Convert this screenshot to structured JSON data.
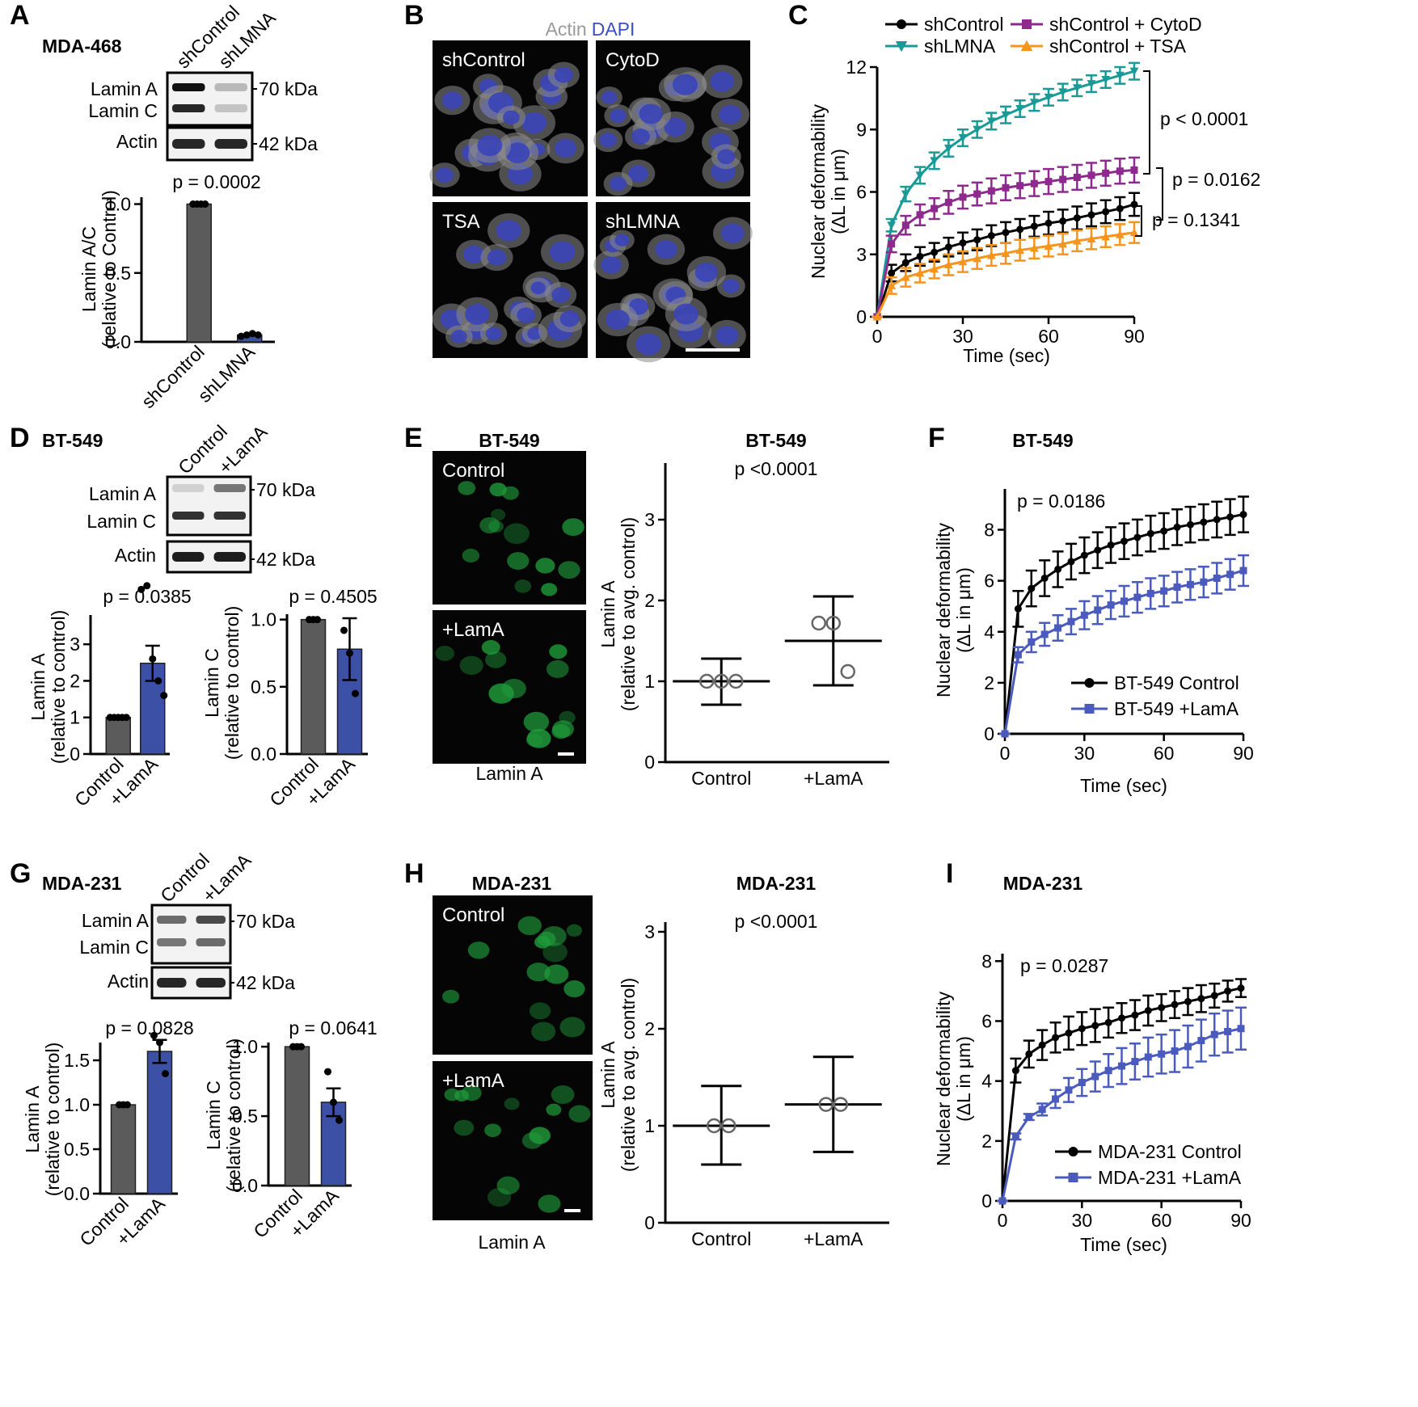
{
  "figure": {
    "panel_letters": [
      "A",
      "B",
      "C",
      "D",
      "E",
      "F",
      "G",
      "H",
      "I"
    ],
    "blots": [
      {
        "cell_line": "MDA-468",
        "lanes": [
          "shControl",
          "shLMNA"
        ],
        "bands": [
          "Lamin A",
          "Lamin C",
          "Actin"
        ],
        "markers": [
          "70 kDa",
          "42 kDa"
        ]
      },
      {
        "cell_line": "BT-549",
        "lanes": [
          "Control",
          "+LamA"
        ],
        "bands": [
          "Lamin A",
          "Lamin C",
          "Actin"
        ],
        "markers": [
          "70 kDa",
          "42 kDa"
        ]
      },
      {
        "cell_line": "MDA-231",
        "lanes": [
          "Control",
          "+LamA"
        ],
        "bands": [
          "Lamin A",
          "Lamin C",
          "Actin"
        ],
        "markers": [
          "70 kDa",
          "42 kDa"
        ]
      }
    ],
    "micrographs": [
      {
        "stains": [
          "Actin",
          "DAPI"
        ],
        "stain_colors": [
          "#9a9a9a",
          "#3b4fc4"
        ],
        "labels": [
          "shControl",
          "CytoD",
          "TSA",
          "shLMNA"
        ]
      },
      {
        "title": "BT-549",
        "labels": [
          "Control",
          "+LamA"
        ],
        "stains": [
          "Lamin A"
        ],
        "stain_colors": [
          "#2bb34a"
        ]
      },
      {
        "title": "MDA-231",
        "labels": [
          "Control",
          "+LamA"
        ],
        "stains": [
          "Lamin A"
        ],
        "stain_colors": [
          "#2bb34a"
        ]
      }
    ]
  },
  "chart_data": [
    {
      "type": "bar",
      "y_label": [
        "Lamin A/C",
        "(relative to Control)"
      ],
      "annotations": [
        "p = 0.0002"
      ],
      "categories": [
        "shControl",
        "shLMNA"
      ],
      "values": [
        1.0,
        0.05
      ],
      "points": [
        [
          1,
          1,
          1,
          1
        ],
        [
          0.04,
          0.05,
          0.06,
          0.05
        ]
      ],
      "colors": [
        "#5b5b5b",
        "#3c50a5"
      ],
      "ylim": [
        0,
        1.05
      ],
      "yticks": [
        {
          "value": 0,
          "label": "0.0"
        },
        0.5,
        {
          "value": 1,
          "label": "1.0"
        }
      ]
    },
    {
      "type": "line",
      "x_label": "Time (sec)",
      "y_label": [
        "Nuclear deformability",
        "(ΔL in μm)"
      ],
      "annotations": [
        "p < 0.0001",
        "p = 0.0162",
        "p = 0.1341"
      ],
      "legend": "top",
      "x": [
        0,
        5,
        10,
        15,
        20,
        25,
        30,
        35,
        40,
        45,
        50,
        55,
        60,
        65,
        70,
        75,
        80,
        85,
        90
      ],
      "xlim": [
        0,
        90
      ],
      "xticks": [
        0,
        30,
        60,
        90
      ],
      "ylim": [
        0,
        12
      ],
      "yticks": [
        0,
        3,
        6,
        9,
        12
      ],
      "series": [
        {
          "name": "shControl",
          "color": "#000000",
          "marker": "circle",
          "values": [
            0,
            2.1,
            2.6,
            2.9,
            3.1,
            3.35,
            3.55,
            3.7,
            3.9,
            4.05,
            4.2,
            4.35,
            4.5,
            4.6,
            4.75,
            4.9,
            5.05,
            5.2,
            5.4
          ],
          "errors": [
            0,
            0.4,
            0.4,
            0.45,
            0.45,
            0.45,
            0.5,
            0.5,
            0.5,
            0.5,
            0.5,
            0.5,
            0.55,
            0.55,
            0.55,
            0.55,
            0.55,
            0.55,
            0.55
          ]
        },
        {
          "name": "shLMNA",
          "color": "#1a9a96",
          "marker": "triangle-down",
          "values": [
            0,
            4.4,
            5.9,
            6.8,
            7.5,
            8.1,
            8.6,
            9.0,
            9.4,
            9.7,
            10.0,
            10.3,
            10.55,
            10.8,
            11.0,
            11.2,
            11.4,
            11.6,
            11.8
          ],
          "errors": [
            0,
            0.3,
            0.35,
            0.4,
            0.4,
            0.4,
            0.4,
            0.4,
            0.4,
            0.4,
            0.4,
            0.4,
            0.4,
            0.4,
            0.4,
            0.4,
            0.4,
            0.4,
            0.4
          ]
        },
        {
          "name": "shControl + CytoD",
          "color": "#8e2a8e",
          "marker": "square",
          "values": [
            0,
            3.5,
            4.4,
            4.9,
            5.2,
            5.5,
            5.75,
            5.9,
            6.05,
            6.2,
            6.3,
            6.4,
            6.5,
            6.6,
            6.7,
            6.8,
            6.9,
            7.0,
            7.05
          ],
          "errors": [
            0,
            0.4,
            0.45,
            0.5,
            0.5,
            0.55,
            0.55,
            0.55,
            0.6,
            0.6,
            0.6,
            0.6,
            0.6,
            0.6,
            0.6,
            0.6,
            0.6,
            0.6,
            0.6
          ]
        },
        {
          "name": "shControl + TSA",
          "color": "#f7941d",
          "marker": "triangle-up",
          "values": [
            0,
            1.5,
            1.9,
            2.1,
            2.3,
            2.5,
            2.65,
            2.8,
            2.95,
            3.05,
            3.2,
            3.3,
            3.4,
            3.5,
            3.65,
            3.75,
            3.85,
            3.95,
            4.05
          ],
          "errors": [
            0,
            0.4,
            0.45,
            0.45,
            0.45,
            0.5,
            0.5,
            0.5,
            0.5,
            0.5,
            0.5,
            0.5,
            0.5,
            0.5,
            0.5,
            0.5,
            0.5,
            0.5,
            0.5
          ]
        }
      ]
    },
    {
      "type": "bar",
      "y_label": [
        "Lamin A",
        "(relative to control)"
      ],
      "annotations": [
        "p = 0.0385"
      ],
      "categories": [
        "Control",
        "+LamA"
      ],
      "values": [
        1,
        2.48
      ],
      "errors": [
        0,
        0.48
      ],
      "points": [
        [
          1,
          1,
          1,
          1,
          1
        ],
        [
          4.5,
          4.6,
          2.6,
          2.0,
          1.6
        ]
      ],
      "colors": [
        "#5b5b5b",
        "#3c50a5"
      ],
      "ylim": [
        0,
        3.8
      ],
      "yticks": [
        0,
        1,
        2,
        3
      ]
    },
    {
      "type": "bar",
      "y_label": [
        "Lamin C",
        "(relative to control)"
      ],
      "annotations": [
        "p = 0.4505"
      ],
      "categories": [
        "Control",
        "+LamA"
      ],
      "values": [
        1,
        0.78
      ],
      "errors": [
        0,
        0.23
      ],
      "points": [
        [
          1,
          1,
          1
        ],
        [
          0.92,
          0.75,
          0.45
        ]
      ],
      "colors": [
        "#5b5b5b",
        "#3c50a5"
      ],
      "ylim": [
        0,
        1.04
      ],
      "yticks": [
        {
          "value": 0,
          "label": "0.0"
        },
        0.5,
        {
          "value": 1,
          "label": "1.0"
        }
      ]
    },
    {
      "type": "swarm",
      "title": "BT-549",
      "y_label": [
        "Lamin A",
        "(relative to avg. control)"
      ],
      "annotations": [
        "p <0.0001"
      ],
      "categories": [
        "Control",
        "+LamA"
      ],
      "values": [
        1.0,
        1.5
      ],
      "lower": [
        0.71,
        0.95
      ],
      "upper": [
        1.28,
        2.05
      ],
      "replicates": [
        [
          1.0,
          1.0,
          1.0
        ],
        [
          1.72,
          1.72,
          1.12
        ]
      ],
      "color": "#b8b8b8",
      "ylim": [
        0,
        3.7
      ],
      "yticks": [
        0,
        1,
        2,
        3
      ]
    },
    {
      "type": "line",
      "title": "BT-549",
      "x_label": "Time (sec)",
      "y_label": [
        "Nuclear deformability",
        "(ΔL in μm)"
      ],
      "annotations": [
        "p = 0.0186"
      ],
      "legend": "lower right",
      "x": [
        0,
        5,
        10,
        15,
        20,
        25,
        30,
        35,
        40,
        45,
        50,
        55,
        60,
        65,
        70,
        75,
        80,
        85,
        90
      ],
      "xlim": [
        0,
        90
      ],
      "xticks": [
        0,
        30,
        60,
        90
      ],
      "ylim": [
        0,
        9.6
      ],
      "yticks": [
        0,
        2,
        4,
        6,
        8
      ],
      "series": [
        {
          "name": "BT-549 Control",
          "color": "#000000",
          "marker": "circle",
          "values": [
            0,
            4.9,
            5.7,
            6.1,
            6.45,
            6.75,
            7.0,
            7.2,
            7.4,
            7.55,
            7.7,
            7.85,
            7.95,
            8.1,
            8.2,
            8.3,
            8.4,
            8.5,
            8.6
          ],
          "errors": [
            0,
            0.7,
            0.7,
            0.7,
            0.7,
            0.7,
            0.7,
            0.7,
            0.7,
            0.7,
            0.7,
            0.7,
            0.7,
            0.7,
            0.7,
            0.7,
            0.7,
            0.7,
            0.7
          ]
        },
        {
          "name": "BT-549 +LamA",
          "color": "#4a5bbd",
          "marker": "square",
          "values": [
            0,
            3.1,
            3.6,
            3.9,
            4.15,
            4.4,
            4.65,
            4.85,
            5.05,
            5.2,
            5.35,
            5.5,
            5.6,
            5.75,
            5.85,
            5.95,
            6.1,
            6.25,
            6.4
          ],
          "errors": [
            0,
            0.3,
            0.4,
            0.45,
            0.5,
            0.5,
            0.55,
            0.55,
            0.55,
            0.6,
            0.6,
            0.6,
            0.6,
            0.6,
            0.6,
            0.6,
            0.6,
            0.6,
            0.6
          ]
        }
      ]
    },
    {
      "type": "bar",
      "y_label": [
        "Lamin A",
        "(relative to control)"
      ],
      "annotations": [
        "p = 0.0828"
      ],
      "categories": [
        "Control",
        "+LamA"
      ],
      "values": [
        1,
        1.6
      ],
      "errors": [
        0,
        0.13
      ],
      "points": [
        [
          1,
          1,
          1
        ],
        [
          1.78,
          1.7,
          1.35
        ]
      ],
      "colors": [
        "#5b5b5b",
        "#3c50a5"
      ],
      "ylim": [
        0,
        1.7
      ],
      "yticks": [
        {
          "value": 0,
          "label": "0.0"
        },
        0.5,
        {
          "value": 1,
          "label": "1.0"
        },
        1.5
      ]
    },
    {
      "type": "bar",
      "y_label": [
        "Lamin C",
        "(relative to control)"
      ],
      "annotations": [
        "p = 0.0641"
      ],
      "categories": [
        "Control",
        "+LamA"
      ],
      "values": [
        1,
        0.6
      ],
      "errors": [
        0,
        0.1
      ],
      "points": [
        [
          1,
          1,
          1
        ],
        [
          0.82,
          0.6,
          0.47
        ]
      ],
      "colors": [
        "#5b5b5b",
        "#3c50a5"
      ],
      "ylim": [
        0,
        1.03
      ],
      "yticks": [
        {
          "value": 0,
          "label": "0.0"
        },
        0.5,
        {
          "value": 1,
          "label": "1.0"
        }
      ]
    },
    {
      "type": "swarm",
      "title": "MDA-231",
      "y_label": [
        "Lamin A",
        "(relative to avg. control)"
      ],
      "annotations": [
        "p <0.0001"
      ],
      "categories": [
        "Control",
        "+LamA"
      ],
      "values": [
        1.0,
        1.22
      ],
      "lower": [
        0.6,
        0.73
      ],
      "upper": [
        1.41,
        1.71
      ],
      "replicates": [
        [
          1.0,
          1.0
        ],
        [
          1.22,
          1.22
        ]
      ],
      "color": "#b8b8b8",
      "ylim": [
        0,
        3.1
      ],
      "yticks": [
        0,
        1,
        2,
        3
      ]
    },
    {
      "type": "line",
      "title": "MDA-231",
      "x_label": "Time (sec)",
      "y_label": [
        "Nuclear deformability",
        "(ΔL in μm)"
      ],
      "annotations": [
        "p = 0.0287"
      ],
      "legend": "lower right",
      "x": [
        0,
        5,
        10,
        15,
        20,
        25,
        30,
        35,
        40,
        45,
        50,
        55,
        60,
        65,
        70,
        75,
        80,
        85,
        90
      ],
      "xlim": [
        0,
        90
      ],
      "xticks": [
        0,
        30,
        60,
        90
      ],
      "ylim": [
        0,
        8.25
      ],
      "yticks": [
        0,
        2,
        4,
        6,
        8
      ],
      "series": [
        {
          "name": "MDA-231 Control",
          "color": "#000000",
          "marker": "circle",
          "values": [
            0,
            4.35,
            4.9,
            5.2,
            5.45,
            5.6,
            5.75,
            5.85,
            5.95,
            6.1,
            6.2,
            6.35,
            6.45,
            6.55,
            6.65,
            6.75,
            6.85,
            7.0,
            7.1
          ],
          "errors": [
            0,
            0.4,
            0.45,
            0.5,
            0.5,
            0.55,
            0.55,
            0.55,
            0.5,
            0.5,
            0.5,
            0.5,
            0.45,
            0.45,
            0.45,
            0.45,
            0.4,
            0.35,
            0.3
          ]
        },
        {
          "name": "MDA-231 +LamA",
          "color": "#4a5bbd",
          "marker": "square",
          "values": [
            0,
            2.15,
            2.8,
            3.05,
            3.4,
            3.7,
            3.95,
            4.15,
            4.35,
            4.5,
            4.65,
            4.8,
            4.9,
            5.0,
            5.15,
            5.35,
            5.55,
            5.65,
            5.75
          ],
          "errors": [
            0,
            0.1,
            0.1,
            0.2,
            0.3,
            0.4,
            0.45,
            0.5,
            0.55,
            0.6,
            0.6,
            0.65,
            0.65,
            0.7,
            0.7,
            0.7,
            0.7,
            0.7,
            0.7
          ]
        }
      ]
    }
  ]
}
